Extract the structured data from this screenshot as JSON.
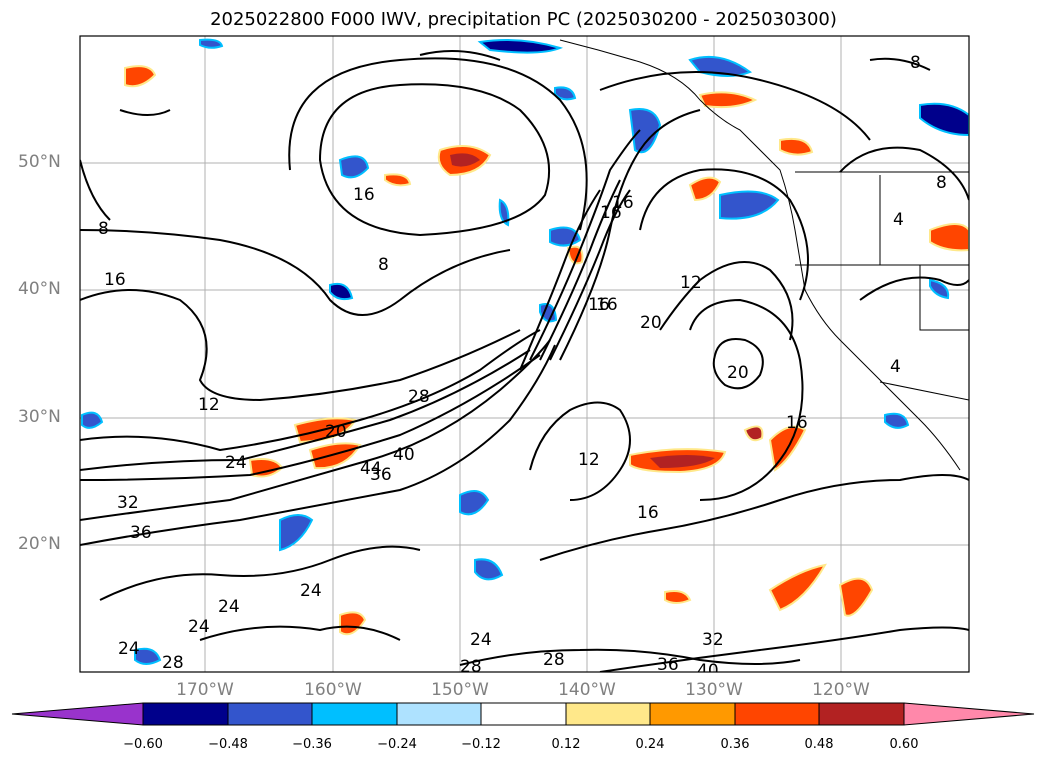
{
  "title": "2025022800 F000 IWV, precipitation PC (2025030200 - 2025030300)",
  "lat_labels": [
    "50°N",
    "40°N",
    "30°N",
    "20°N"
  ],
  "lon_labels": [
    "170°W",
    "160°W",
    "150°W",
    "140°W",
    "130°W",
    "120°W"
  ],
  "colorbar": {
    "labels": [
      "−0.60",
      "−0.48",
      "−0.36",
      "−0.24",
      "−0.12",
      "0.12",
      "0.24",
      "0.36",
      "0.48",
      "0.60"
    ],
    "colors": [
      "#9933cc",
      "#00008b",
      "#3355cc",
      "#00bfff",
      "#aee2ff",
      "#ffffff",
      "#ffe88a",
      "#ff9900",
      "#ff4500",
      "#b22222",
      "#ff88aa"
    ]
  },
  "contour_labels": [
    "8",
    "16",
    "8",
    "16",
    "16",
    "12",
    "20",
    "24",
    "32",
    "36",
    "28",
    "40",
    "44",
    "36",
    "16",
    "16",
    "12",
    "20",
    "16",
    "20",
    "16",
    "12",
    "16",
    "24",
    "24",
    "24",
    "24",
    "24",
    "28",
    "28",
    "28",
    "32",
    "36",
    "40",
    "8",
    "8",
    "4",
    "4"
  ]
}
